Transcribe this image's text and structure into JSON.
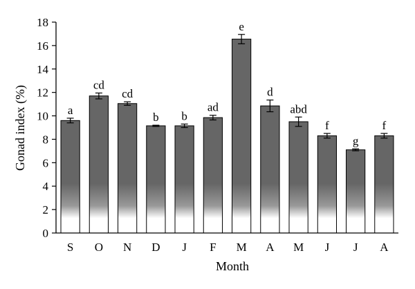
{
  "chart_data": {
    "type": "bar",
    "categories": [
      "S",
      "O",
      "N",
      "D",
      "J",
      "F",
      "M",
      "A",
      "M",
      "J",
      "J",
      "A"
    ],
    "values": [
      9.6,
      11.7,
      11.05,
      9.15,
      9.15,
      9.85,
      16.55,
      10.85,
      9.5,
      8.3,
      7.1,
      8.3
    ],
    "errors": [
      0.2,
      0.25,
      0.15,
      0.05,
      0.15,
      0.2,
      0.4,
      0.5,
      0.4,
      0.2,
      0.08,
      0.2
    ],
    "significance_labels": [
      "a",
      "cd",
      "cd",
      "b",
      "b",
      "ad",
      "e",
      "d",
      "abd",
      "f",
      "g",
      "f"
    ],
    "title": "",
    "xlabel": "Month",
    "ylabel": "Gonad index (%)",
    "ylim": [
      0,
      18
    ],
    "yticks": [
      0,
      2,
      4,
      6,
      8,
      10,
      12,
      14,
      16,
      18
    ],
    "grid": false,
    "bar_color": "#666666"
  }
}
